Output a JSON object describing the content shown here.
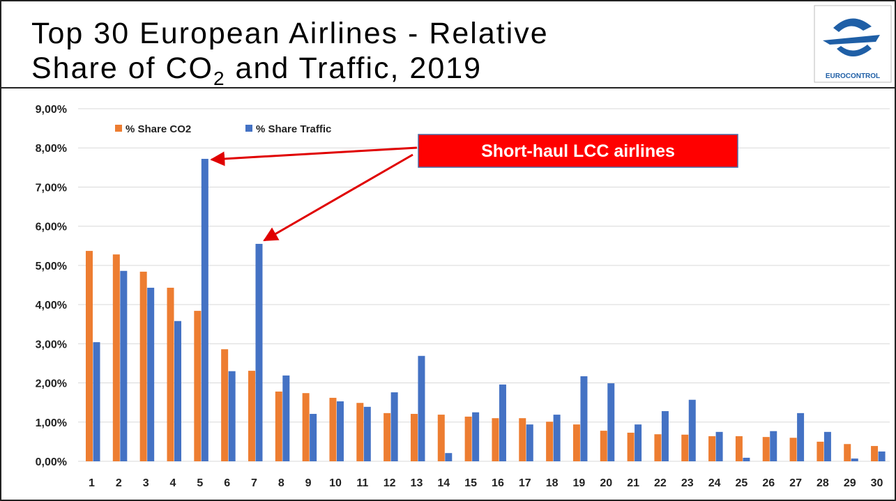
{
  "chart_data": {
    "type": "bar",
    "title": {
      "line1": "Top 30 European Airlines - Relative",
      "line2_start": "Share of CO",
      "line2_subscript": "2",
      "line2_end": " and Traffic, 2019"
    },
    "logo_text": "EUROCONTROL",
    "annotation": "Short-haul LCC airlines",
    "categories": [
      "1",
      "2",
      "3",
      "4",
      "5",
      "6",
      "7",
      "8",
      "9",
      "10",
      "11",
      "12",
      "13",
      "14",
      "15",
      "16",
      "17",
      "18",
      "19",
      "20",
      "21",
      "22",
      "23",
      "24",
      "25",
      "26",
      "27",
      "28",
      "29",
      "30"
    ],
    "series": [
      {
        "name": "% Share CO2",
        "color": "#ed7d31",
        "values": [
          5.37,
          5.28,
          4.84,
          4.43,
          3.84,
          2.86,
          2.31,
          1.78,
          1.74,
          1.62,
          1.49,
          1.23,
          1.21,
          1.19,
          1.14,
          1.1,
          1.1,
          1.01,
          0.94,
          0.78,
          0.73,
          0.69,
          0.68,
          0.64,
          0.64,
          0.62,
          0.6,
          0.5,
          0.44,
          0.39
        ]
      },
      {
        "name": "% Share Traffic",
        "color": "#4472c4",
        "values": [
          3.04,
          4.86,
          4.43,
          3.58,
          7.72,
          2.3,
          5.55,
          2.19,
          1.21,
          1.53,
          1.39,
          1.76,
          2.69,
          0.21,
          1.25,
          1.96,
          0.94,
          1.19,
          2.17,
          1.99,
          0.94,
          1.28,
          1.57,
          0.75,
          0.09,
          0.77,
          1.23,
          0.75,
          0.07,
          0.25
        ]
      }
    ],
    "ylim": [
      0,
      9
    ],
    "yticks": [
      {
        "value": 0,
        "label": "0,00%"
      },
      {
        "value": 1,
        "label": "1,00%"
      },
      {
        "value": 2,
        "label": "2,00%"
      },
      {
        "value": 3,
        "label": "3,00%"
      },
      {
        "value": 4,
        "label": "4,00%"
      },
      {
        "value": 5,
        "label": "5,00%"
      },
      {
        "value": 6,
        "label": "6,00%"
      },
      {
        "value": 7,
        "label": "7,00%"
      },
      {
        "value": 8,
        "label": "8,00%"
      },
      {
        "value": 9,
        "label": "9,00%"
      }
    ],
    "grid": true
  }
}
